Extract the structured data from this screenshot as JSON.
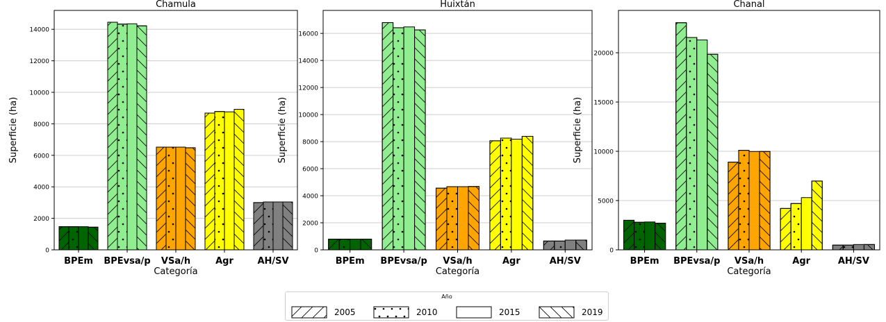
{
  "chart_data": [
    {
      "type": "bar",
      "title": "Chamula",
      "xlabel": "Categoría",
      "ylabel": "Superficie (ha)",
      "categories": [
        "BPEm",
        "BPEvsa/p",
        "VSa/h",
        "Agr",
        "AH/SV"
      ],
      "ylim": [
        0,
        15200
      ],
      "yticks": [
        0,
        2000,
        4000,
        6000,
        8000,
        10000,
        12000,
        14000
      ],
      "grid": "y",
      "series": [
        {
          "name": "2005",
          "values": [
            1470,
            14450,
            6520,
            8680,
            3000
          ]
        },
        {
          "name": "2010",
          "values": [
            1470,
            14330,
            6520,
            8780,
            3040
          ]
        },
        {
          "name": "2015",
          "values": [
            1470,
            14350,
            6520,
            8760,
            3040
          ]
        },
        {
          "name": "2019",
          "values": [
            1440,
            14220,
            6480,
            8920,
            3040
          ]
        }
      ]
    },
    {
      "type": "bar",
      "title": "Huixtán",
      "xlabel": "Categoría",
      "ylabel": "Superficie (ha)",
      "categories": [
        "BPEm",
        "BPEvsa/p",
        "VSa/h",
        "Agr",
        "AH/SV"
      ],
      "ylim": [
        0,
        17700
      ],
      "yticks": [
        0,
        2000,
        4000,
        6000,
        8000,
        10000,
        12000,
        14000,
        16000
      ],
      "grid": "y",
      "series": [
        {
          "name": "2005",
          "values": [
            790,
            16800,
            4560,
            8060,
            650
          ]
        },
        {
          "name": "2010",
          "values": [
            790,
            16420,
            4670,
            8260,
            650
          ]
        },
        {
          "name": "2015",
          "values": [
            790,
            16480,
            4670,
            8180,
            720
          ]
        },
        {
          "name": "2019",
          "values": [
            790,
            16260,
            4680,
            8390,
            720
          ]
        }
      ]
    },
    {
      "type": "bar",
      "title": "Chanal",
      "xlabel": "Categoría",
      "ylabel": "Superficie (ha)",
      "categories": [
        "BPEm",
        "BPEvsa/p",
        "VSa/h",
        "Agr",
        "AH/SV"
      ],
      "ylim": [
        0,
        24300
      ],
      "yticks": [
        0,
        5000,
        10000,
        15000,
        20000
      ],
      "grid": "y",
      "series": [
        {
          "name": "2005",
          "values": [
            3000,
            23050,
            8900,
            4200,
            480
          ]
        },
        {
          "name": "2010",
          "values": [
            2800,
            21550,
            10100,
            4700,
            480
          ]
        },
        {
          "name": "2015",
          "values": [
            2830,
            21300,
            9980,
            5300,
            540
          ]
        },
        {
          "name": "2019",
          "values": [
            2700,
            19850,
            9980,
            6980,
            540
          ]
        }
      ]
    }
  ],
  "category_colors": [
    "#006400",
    "#90EE90",
    "#FFA500",
    "#FFFF00",
    "#808080"
  ],
  "legend": {
    "title": "Año",
    "placement": "bottom-center",
    "items": [
      {
        "label": "2005",
        "pattern": "forward-diagonal"
      },
      {
        "label": "2010",
        "pattern": "dots"
      },
      {
        "label": "2015",
        "pattern": "none"
      },
      {
        "label": "2019",
        "pattern": "back-diagonal"
      }
    ]
  }
}
